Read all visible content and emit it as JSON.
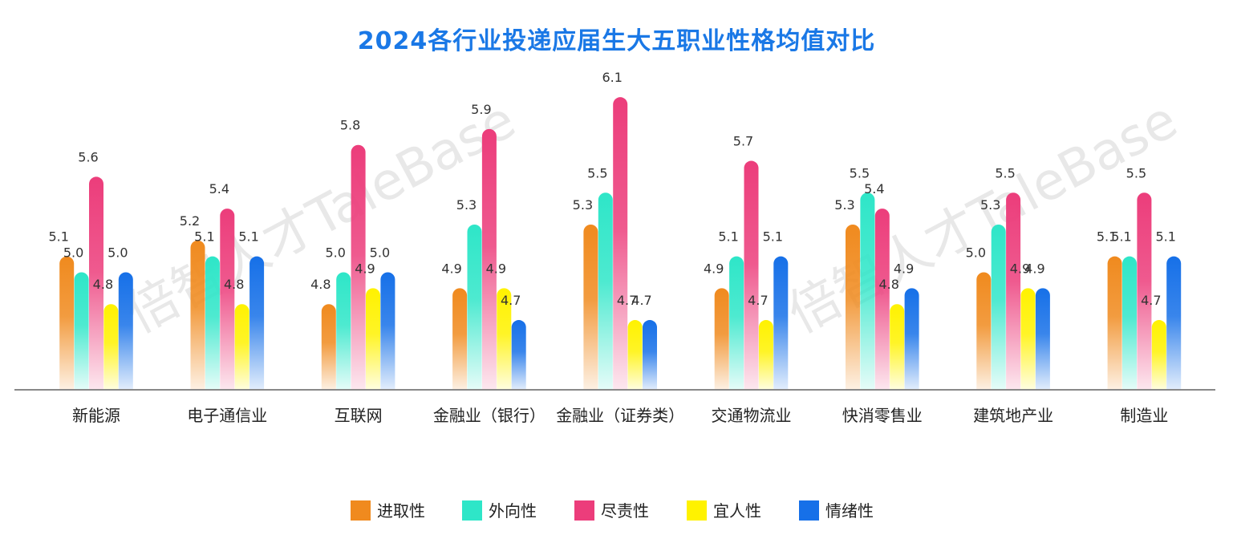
{
  "chart_data": {
    "type": "bar",
    "title": "2024各行业投递应届生大五职业性格均值对比",
    "xlabel": "",
    "ylabel": "",
    "ylim": [
      4.0,
      6.4
    ],
    "grid": false,
    "legend_position": "bottom",
    "categories": [
      "新能源",
      "电子通信业",
      "互联网",
      "金融业（银行）",
      "金融业（证券类）",
      "交通物流业",
      "快消零售业",
      "建筑地产业",
      "制造业"
    ],
    "series": [
      {
        "name": "进取性",
        "color": "#f08a1e",
        "values": [
          5.1,
          5.2,
          4.8,
          4.9,
          5.3,
          4.9,
          5.3,
          5.0,
          5.1
        ]
      },
      {
        "name": "外向性",
        "color": "#2ee6c8",
        "values": [
          5.0,
          5.1,
          5.0,
          5.3,
          5.5,
          5.1,
          5.5,
          5.3,
          5.1
        ]
      },
      {
        "name": "尽责性",
        "color": "#ec3d7b",
        "values": [
          5.6,
          5.4,
          5.8,
          5.9,
          6.1,
          5.7,
          5.4,
          5.5,
          5.5
        ]
      },
      {
        "name": "宜人性",
        "color": "#fff200",
        "values": [
          4.8,
          4.8,
          4.9,
          4.9,
          4.7,
          4.7,
          4.8,
          4.9,
          4.7
        ]
      },
      {
        "name": "情绪性",
        "color": "#1670e8",
        "values": [
          5.0,
          5.1,
          5.0,
          4.7,
          4.7,
          5.1,
          4.9,
          4.9,
          5.1
        ]
      }
    ]
  },
  "watermark": "倍智人才TaleBase"
}
